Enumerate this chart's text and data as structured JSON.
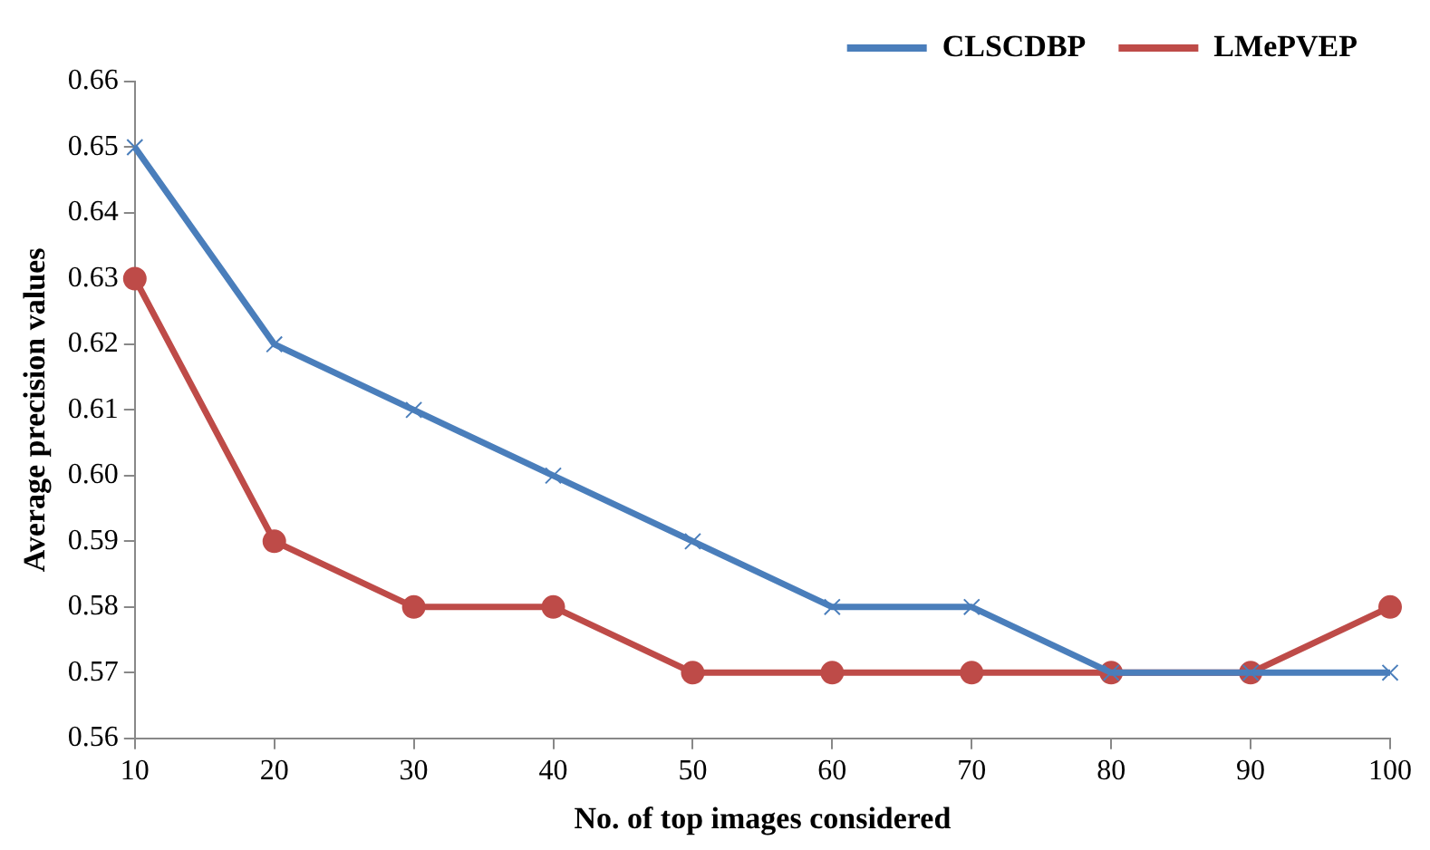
{
  "chart_data": {
    "type": "line",
    "xlabel": "No. of top images considered",
    "ylabel": "Average precision values",
    "categories": [
      "10",
      "20",
      "30",
      "40",
      "50",
      "60",
      "70",
      "80",
      "90",
      "100"
    ],
    "series": [
      {
        "name": "CLSCDBP",
        "color": "#4a7ebb",
        "marker": "cross",
        "values": [
          0.65,
          0.62,
          0.61,
          0.6,
          0.59,
          0.58,
          0.58,
          0.57,
          0.57,
          0.57
        ]
      },
      {
        "name": "LMePVEP",
        "color": "#be4b48",
        "marker": "circle",
        "values": [
          0.63,
          0.59,
          0.58,
          0.58,
          0.57,
          0.57,
          0.57,
          0.57,
          0.57,
          0.58
        ]
      }
    ],
    "ylim": [
      0.56,
      0.66
    ],
    "yticks": [
      0.56,
      0.57,
      0.58,
      0.59,
      {
        "value": 0.6,
        "label": "0.60"
      },
      0.61,
      0.62,
      0.63,
      0.64,
      0.65,
      0.66
    ],
    "grid": false,
    "legend": "top right",
    "line_style": "solid"
  }
}
